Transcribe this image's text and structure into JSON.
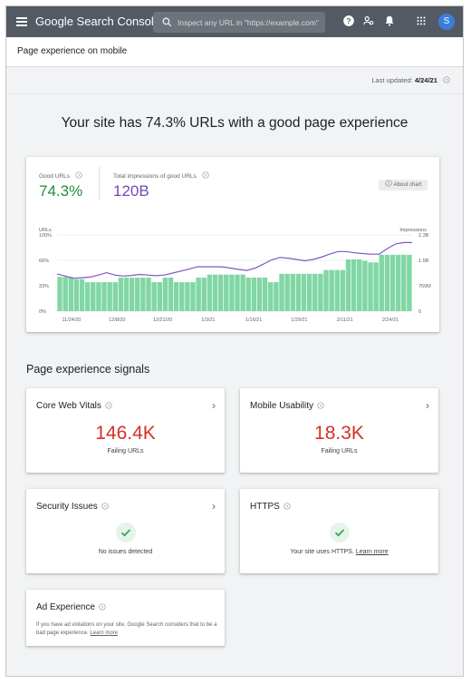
{
  "topbar": {
    "brand": "Google Search Console",
    "search_placeholder": "Inspect any URL in \"https://example.com\"",
    "avatar_letter": "S"
  },
  "page": {
    "title": "Page experience on mobile",
    "last_updated_label": "Last updated:",
    "last_updated_value": "4/24/21",
    "headline": "Your site has 74.3% URLs with a good page experience"
  },
  "summary": {
    "good_urls_label": "Good URLs",
    "good_urls_value": "74.3%",
    "impressions_label": "Total impressions of good URLs",
    "impressions_value": "120B",
    "about_chart_label": "About chart"
  },
  "colors": {
    "bar": "#81d7a4",
    "line": "#7e57c2",
    "good_value": "#1e8e3e",
    "impressions_value": "#7248b9",
    "failing": "#d93025",
    "check": "#34a853",
    "topbar": "#535a63"
  },
  "chart_data": {
    "type": "bar",
    "left_axis_label": "URLs",
    "right_axis_label": "Impressions",
    "left_ticks": [
      "0%",
      "33%",
      "66%",
      "100%"
    ],
    "right_ticks": [
      "0",
      "750M",
      "1.5B",
      "2.3B"
    ],
    "x_tick_labels": [
      "11/24/20",
      "12/8/20",
      "12/21/20",
      "1/3/21",
      "1/16/21",
      "1/29/21",
      "2/11/21",
      "2/24/21"
    ],
    "ylim_urls_percent": [
      0,
      100
    ],
    "ylim_impressions": [
      0,
      2.3
    ],
    "series": [
      {
        "name": "URLs",
        "values": [
          45,
          45,
          45,
          42,
          42,
          38,
          38,
          38,
          38,
          38,
          38,
          44,
          44,
          44,
          44,
          44,
          44,
          38,
          38,
          44,
          44,
          38,
          38,
          38,
          38,
          44,
          44,
          48,
          48,
          48,
          48,
          48,
          48,
          48,
          44,
          44,
          44,
          44,
          38,
          38,
          49,
          49,
          49,
          49,
          49,
          49,
          49,
          49,
          54,
          54,
          54,
          54,
          68,
          68,
          68,
          66,
          64,
          64,
          74,
          74,
          74,
          74,
          74,
          74
        ]
      },
      {
        "name": "Impressions",
        "values": [
          1.12,
          1.06,
          0.99,
          1.01,
          1.03,
          1.09,
          1.16,
          1.09,
          1.06,
          1.08,
          1.11,
          1.09,
          1.07,
          1.09,
          1.15,
          1.21,
          1.27,
          1.34,
          1.34,
          1.34,
          1.34,
          1.3,
          1.26,
          1.23,
          1.3,
          1.42,
          1.55,
          1.62,
          1.6,
          1.56,
          1.52,
          1.56,
          1.63,
          1.72,
          1.8,
          1.8,
          1.76,
          1.74,
          1.72,
          1.72,
          1.89,
          2.03,
          2.07,
          2.07
        ]
      }
    ]
  },
  "signals": {
    "section_title": "Page experience signals",
    "core_web_vitals": {
      "title": "Core Web Vitals",
      "value": "146.4K",
      "label": "Failing URLs"
    },
    "mobile_usability": {
      "title": "Mobile Usability",
      "value": "18.3K",
      "label": "Failing URLs"
    },
    "security_issues": {
      "title": "Security Issues",
      "status": "No issues detected"
    },
    "https": {
      "title": "HTTPS",
      "status": "Your site uses HTTPS.",
      "link": "Learn more"
    },
    "ad_experience": {
      "title": "Ad Experience",
      "text": "If you have ad violations on your site, Google Search considers that to be a bad page experience.",
      "link": "Learn more"
    }
  }
}
